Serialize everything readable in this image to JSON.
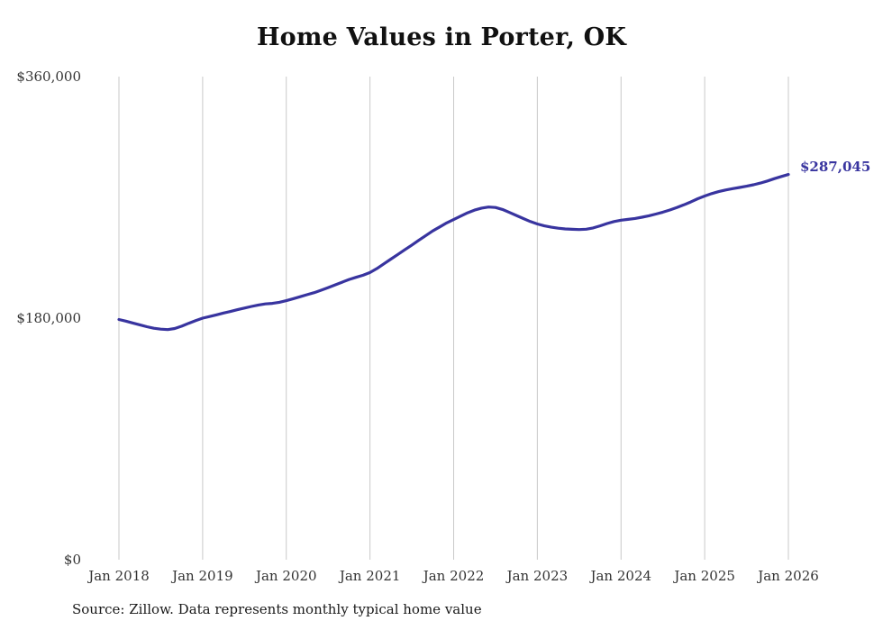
{
  "title": "Home Values in Porter, OK",
  "source": "Source: Zillow. Data represents monthly typical home value",
  "end_label": "$287,045",
  "colors": {
    "line": "#38349f",
    "grid": "#c9c9c9",
    "axis_text": "#333333",
    "end_label": "#38349f",
    "background": "#ffffff"
  },
  "chart_data": {
    "type": "line",
    "title": "Home Values in Porter, OK",
    "xlabel": "",
    "ylabel": "",
    "x_start": "Jan 2018",
    "x_end": "Jan 2026",
    "x_tick_labels": [
      "Jan 2018",
      "Jan 2019",
      "Jan 2020",
      "Jan 2021",
      "Jan 2022",
      "Jan 2023",
      "Jan 2024",
      "Jan 2025",
      "Jan 2026"
    ],
    "x_tick_indices": [
      0,
      12,
      24,
      36,
      48,
      60,
      72,
      84,
      96
    ],
    "y_ticks": [
      0,
      180000,
      360000
    ],
    "y_tick_labels": [
      "$0",
      "$180,000",
      "$360,000"
    ],
    "ylim": [
      0,
      360000
    ],
    "grid": "vertical",
    "legend": "none",
    "end_value": 287045,
    "series": [
      {
        "name": "Monthly typical home value",
        "values": [
          179000,
          177800,
          176400,
          175000,
          173600,
          172500,
          171800,
          171500,
          172300,
          174000,
          176200,
          178200,
          180000,
          181200,
          182500,
          183800,
          185000,
          186300,
          187500,
          188700,
          189800,
          190600,
          191000,
          191800,
          193000,
          194500,
          196000,
          197500,
          199000,
          200800,
          202800,
          204800,
          206800,
          208800,
          210400,
          212000,
          214000,
          217000,
          220500,
          224000,
          227500,
          231000,
          234500,
          238000,
          241500,
          245000,
          248000,
          251000,
          253500,
          256000,
          258500,
          260500,
          262000,
          262800,
          262500,
          261000,
          258800,
          256500,
          254200,
          252000,
          250200,
          248800,
          247800,
          247000,
          246500,
          246200,
          246000,
          246300,
          247200,
          248800,
          250500,
          252000,
          253000,
          253600,
          254300,
          255200,
          256300,
          257600,
          259000,
          260600,
          262400,
          264400,
          266600,
          269000,
          271000,
          272800,
          274300,
          275500,
          276500,
          277400,
          278300,
          279400,
          280700,
          282200,
          284000,
          285600,
          287045
        ]
      }
    ]
  }
}
